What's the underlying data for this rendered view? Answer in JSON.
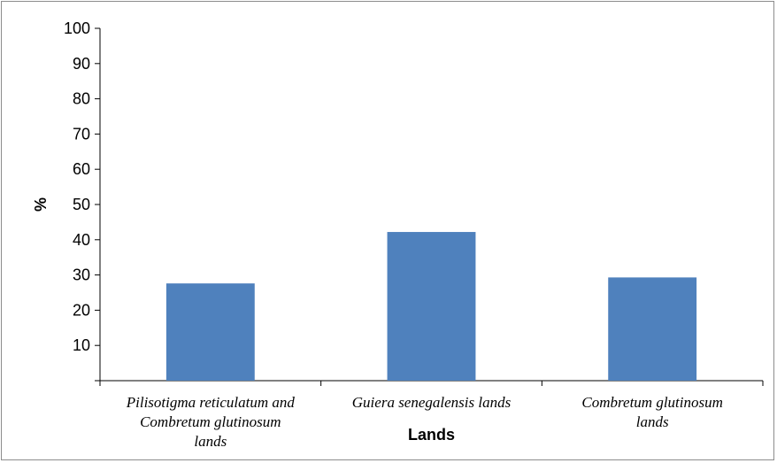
{
  "chart_data": {
    "type": "bar",
    "categories": [
      [
        "Pilisotigma reticulatum  and",
        "Combretum glutinosum",
        "lands"
      ],
      [
        "Guiera senegalensis lands"
      ],
      [
        "Combretum glutinosum",
        "lands"
      ]
    ],
    "values": [
      27.6,
      42.2,
      29.3
    ],
    "xlabel": "Lands",
    "ylabel": "%",
    "ylim": [
      0,
      100
    ],
    "yticks": [
      10,
      20,
      30,
      40,
      50,
      60,
      70,
      80,
      90,
      100
    ],
    "bar_color": "#4f81bd",
    "grid": false,
    "legend": "none"
  }
}
